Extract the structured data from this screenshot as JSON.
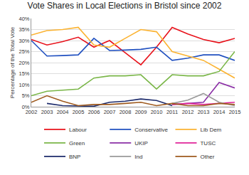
{
  "chart_data": {
    "type": "line",
    "title": "Vote Shares in Local Elections in Bristol since 2002",
    "y_label": "Percentage of the Total Vote",
    "x": [
      2002,
      2003,
      2004,
      2005,
      2006,
      2007,
      2008,
      2009,
      2010,
      2011,
      2012,
      2013,
      2014,
      2015
    ],
    "xlim": [
      2002,
      2015
    ],
    "xticks": [
      2002,
      2003,
      2004,
      2005,
      2006,
      2007,
      2008,
      2009,
      2010,
      2011,
      2012,
      2013,
      2014,
      2015
    ],
    "ylim": [
      0,
      40
    ],
    "yticks": [
      {
        "value": 0,
        "label": "0%"
      },
      {
        "value": 5,
        "label": "5%"
      },
      {
        "value": 10,
        "label": "10%"
      },
      {
        "value": 15,
        "label": "15%"
      },
      {
        "value": 20,
        "label": "20%"
      },
      {
        "value": 25,
        "label": "25%"
      },
      {
        "value": 30,
        "label": "30%"
      },
      {
        "value": 35,
        "label": "35%"
      },
      {
        "value": 40,
        "label": "40%"
      }
    ],
    "grid": true,
    "legend": "bottom",
    "series": [
      {
        "name": "Labour",
        "color": "#e8121b",
        "values": [
          30.5,
          28,
          29.5,
          31.5,
          27,
          30,
          24.5,
          19,
          27,
          36,
          33,
          30.5,
          29,
          31
        ]
      },
      {
        "name": "Conservative",
        "color": "#2050c0",
        "values": [
          30,
          23,
          23.2,
          23.5,
          31,
          25.5,
          25.7,
          26,
          27,
          21,
          22,
          23.5,
          23.5,
          21
        ]
      },
      {
        "name": "Lib Dem",
        "color": "#fbb332",
        "values": [
          32.5,
          34.5,
          35,
          36,
          28,
          27,
          31,
          35,
          34,
          25,
          23,
          21,
          17,
          13
        ]
      },
      {
        "name": "Green",
        "color": "#7ab648",
        "values": [
          5,
          7,
          7.5,
          8,
          13,
          14,
          14,
          14.5,
          8,
          14.5,
          14,
          14,
          16,
          25
        ]
      },
      {
        "name": "UKIP",
        "color": "#8b2fa6",
        "values": [
          null,
          null,
          null,
          null,
          null,
          null,
          null,
          null,
          null,
          1,
          1.5,
          2,
          11,
          8.5
        ]
      },
      {
        "name": "TUSC",
        "color": "#e0259a",
        "values": [
          null,
          null,
          null,
          null,
          null,
          null,
          null,
          null,
          null,
          1,
          1.5,
          1,
          1.5,
          2
        ]
      },
      {
        "name": "BNP",
        "color": "#1c2a6b",
        "values": [
          null,
          1.5,
          0.5,
          0.3,
          0.2,
          2,
          2.5,
          3.5,
          2.8,
          0.5,
          null,
          null,
          null,
          null
        ]
      },
      {
        "name": "Ind",
        "color": "#9a9a9a",
        "values": [
          null,
          null,
          null,
          null,
          null,
          null,
          null,
          null,
          null,
          1.5,
          3,
          6,
          2,
          0.5
        ]
      },
      {
        "name": "Other",
        "color": "#9e5a1e",
        "values": [
          2,
          5,
          2.5,
          0.5,
          1,
          1,
          1.5,
          2,
          0.5,
          1.5,
          0.5,
          0.5,
          1.5,
          1
        ]
      }
    ]
  }
}
